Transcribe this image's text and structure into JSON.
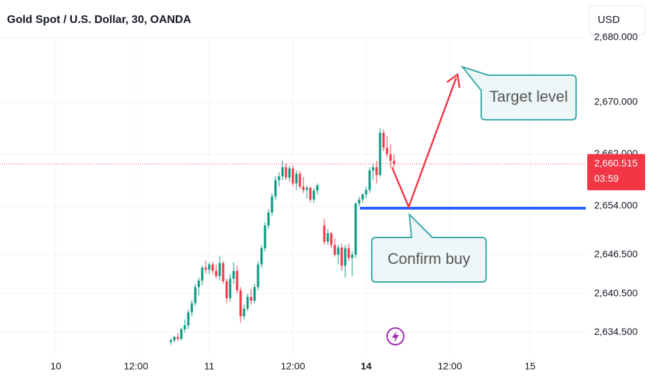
{
  "chart_data": {
    "type": "candlestick",
    "title": "Gold Spot / U.S. Dollar, 30, OANDA",
    "currency": "USD",
    "up_color": "#089981",
    "down_color": "#f23645",
    "x": [
      33,
      34,
      35,
      36,
      37,
      38,
      39,
      40,
      41,
      42,
      43,
      44,
      45,
      46,
      47,
      48,
      49,
      50,
      51,
      52,
      53,
      54,
      55,
      56,
      57,
      58,
      59,
      60,
      61,
      62,
      63,
      64,
      65,
      66,
      67,
      68,
      69,
      70,
      71,
      72,
      73,
      74,
      75,
      77,
      78,
      79,
      80,
      81,
      82,
      83,
      84,
      85,
      86,
      87,
      88,
      89,
      90,
      91,
      92,
      93,
      94,
      95,
      96,
      97
    ],
    "open": [
      2633.0,
      2633.3,
      2633.8,
      2633.5,
      2635.0,
      2635.6,
      2637.6,
      2639.0,
      2641.5,
      2642.5,
      2644.5,
      2644.2,
      2645.0,
      2644.0,
      2643.2,
      2645.2,
      2642.4,
      2639.8,
      2642.8,
      2644.0,
      2641.0,
      2637.0,
      2638.2,
      2640.0,
      2639.4,
      2641.5,
      2645.0,
      2647.5,
      2651.0,
      2653.0,
      2655.5,
      2658.0,
      2658.6,
      2660.0,
      2658.4,
      2659.8,
      2657.5,
      2659.0,
      2657.0,
      2656.5,
      2656.8,
      2655.0,
      2656.4,
      2651.0,
      2648.5,
      2649.8,
      2648.0,
      2646.5,
      2647.6,
      2644.8,
      2647.5,
      2646.0,
      2646.5,
      2654.4,
      2655.0,
      2655.8,
      2656.5,
      2659.5,
      2660.0,
      2658.8,
      2665.3,
      2663.0,
      2662.0,
      2661.0
    ],
    "high": [
      2633.6,
      2634.0,
      2634.4,
      2635.2,
      2636.5,
      2638.0,
      2639.5,
      2642.0,
      2643.0,
      2644.8,
      2645.6,
      2645.3,
      2645.4,
      2645.0,
      2646.3,
      2645.5,
      2642.8,
      2643.5,
      2645.3,
      2644.8,
      2641.5,
      2638.8,
      2640.5,
      2641.2,
      2642.0,
      2645.5,
      2648.0,
      2651.5,
      2653.5,
      2656.0,
      2658.6,
      2659.2,
      2661.0,
      2660.6,
      2660.2,
      2660.3,
      2659.5,
      2659.4,
      2658.5,
      2657.2,
      2657.0,
      2656.8,
      2657.5,
      2652.0,
      2650.5,
      2650.0,
      2649.0,
      2648.0,
      2648.2,
      2648.0,
      2648.2,
      2647.0,
      2654.6,
      2655.5,
      2656.0,
      2657.0,
      2660.0,
      2660.5,
      2661.0,
      2666.0,
      2665.8,
      2664.8,
      2663.5,
      2662.0
    ],
    "low": [
      2632.6,
      2633.0,
      2633.2,
      2633.3,
      2634.5,
      2635.0,
      2637.0,
      2638.6,
      2640.2,
      2641.8,
      2643.6,
      2643.5,
      2643.5,
      2642.8,
      2642.5,
      2642.0,
      2639.0,
      2639.2,
      2642.0,
      2640.5,
      2636.0,
      2636.5,
      2637.8,
      2638.8,
      2639.0,
      2641.0,
      2644.5,
      2647.0,
      2650.5,
      2652.5,
      2655.0,
      2657.0,
      2658.0,
      2658.0,
      2657.8,
      2657.0,
      2656.5,
      2656.6,
      2656.0,
      2655.2,
      2654.6,
      2654.5,
      2655.8,
      2648.0,
      2648.0,
      2647.5,
      2646.2,
      2645.0,
      2644.0,
      2643.0,
      2645.5,
      2643.2,
      2646.0,
      2654.0,
      2654.5,
      2655.2,
      2656.0,
      2658.0,
      2657.5,
      2658.5,
      2662.5,
      2661.5,
      2660.0,
      2660.0
    ],
    "close": [
      2633.3,
      2633.8,
      2633.5,
      2635.0,
      2635.6,
      2637.6,
      2639.0,
      2641.5,
      2642.5,
      2644.5,
      2644.2,
      2645.0,
      2644.0,
      2643.2,
      2645.2,
      2642.4,
      2639.8,
      2642.8,
      2644.0,
      2641.0,
      2637.0,
      2638.2,
      2640.0,
      2639.4,
      2641.5,
      2645.0,
      2647.5,
      2651.0,
      2653.0,
      2655.5,
      2658.0,
      2658.6,
      2660.0,
      2658.4,
      2659.8,
      2657.5,
      2659.0,
      2657.0,
      2656.5,
      2656.8,
      2655.0,
      2656.4,
      2657.2,
      2648.5,
      2649.8,
      2648.0,
      2646.5,
      2647.6,
      2644.8,
      2647.5,
      2646.0,
      2646.5,
      2654.4,
      2655.0,
      2655.8,
      2656.5,
      2659.5,
      2660.0,
      2658.8,
      2665.3,
      2663.0,
      2662.0,
      2661.0,
      2660.5
    ],
    "xlim": [
      -16,
      152
    ],
    "xticks": [
      {
        "value": 0,
        "label": "10"
      },
      {
        "value": 23,
        "label": "12:00"
      },
      {
        "value": 44,
        "label": "11"
      },
      {
        "value": 68,
        "label": "12:00"
      },
      {
        "value": 89,
        "label": "14",
        "bold": true
      },
      {
        "value": 113,
        "label": "12:00"
      },
      {
        "value": 136,
        "label": "15"
      }
    ],
    "ylim": [
      2631,
      2681.5
    ],
    "yticks": [
      {
        "value": 2680,
        "label": "2,680.000"
      },
      {
        "value": 2670,
        "label": "2,670.000"
      },
      {
        "value": 2662,
        "label": "2,662.000"
      },
      {
        "value": 2654,
        "label": "2,654.000"
      },
      {
        "value": 2646.5,
        "label": "2,646.500"
      },
      {
        "value": 2640.5,
        "label": "2,640.500"
      },
      {
        "value": 2634.5,
        "label": "2,634.500"
      }
    ],
    "grid": true,
    "last_price": {
      "value": 2660.515,
      "label": "2,660.515"
    },
    "countdown": "03:59",
    "annotations": [
      "Target level",
      "Confirm buy"
    ]
  }
}
